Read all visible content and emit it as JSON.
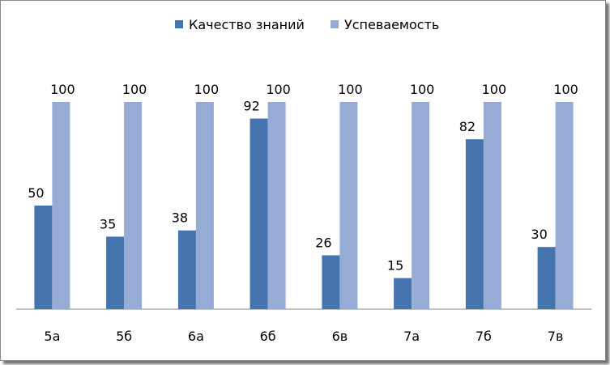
{
  "chart_data": {
    "type": "bar",
    "title": "",
    "xlabel": "",
    "ylabel": "",
    "ylim": [
      0,
      100
    ],
    "grid": false,
    "legend_position": "top",
    "categories": [
      "5а",
      "5б",
      "6а",
      "6б",
      "6в",
      "7а",
      "7б",
      "7в"
    ],
    "series": [
      {
        "name": "Качество знаний",
        "color": "#4674AE",
        "values": [
          50,
          35,
          38,
          92,
          26,
          15,
          82,
          30
        ]
      },
      {
        "name": "Успеваемость",
        "color": "#96ACD4",
        "values": [
          100,
          100,
          100,
          100,
          100,
          100,
          100,
          100
        ]
      }
    ]
  }
}
